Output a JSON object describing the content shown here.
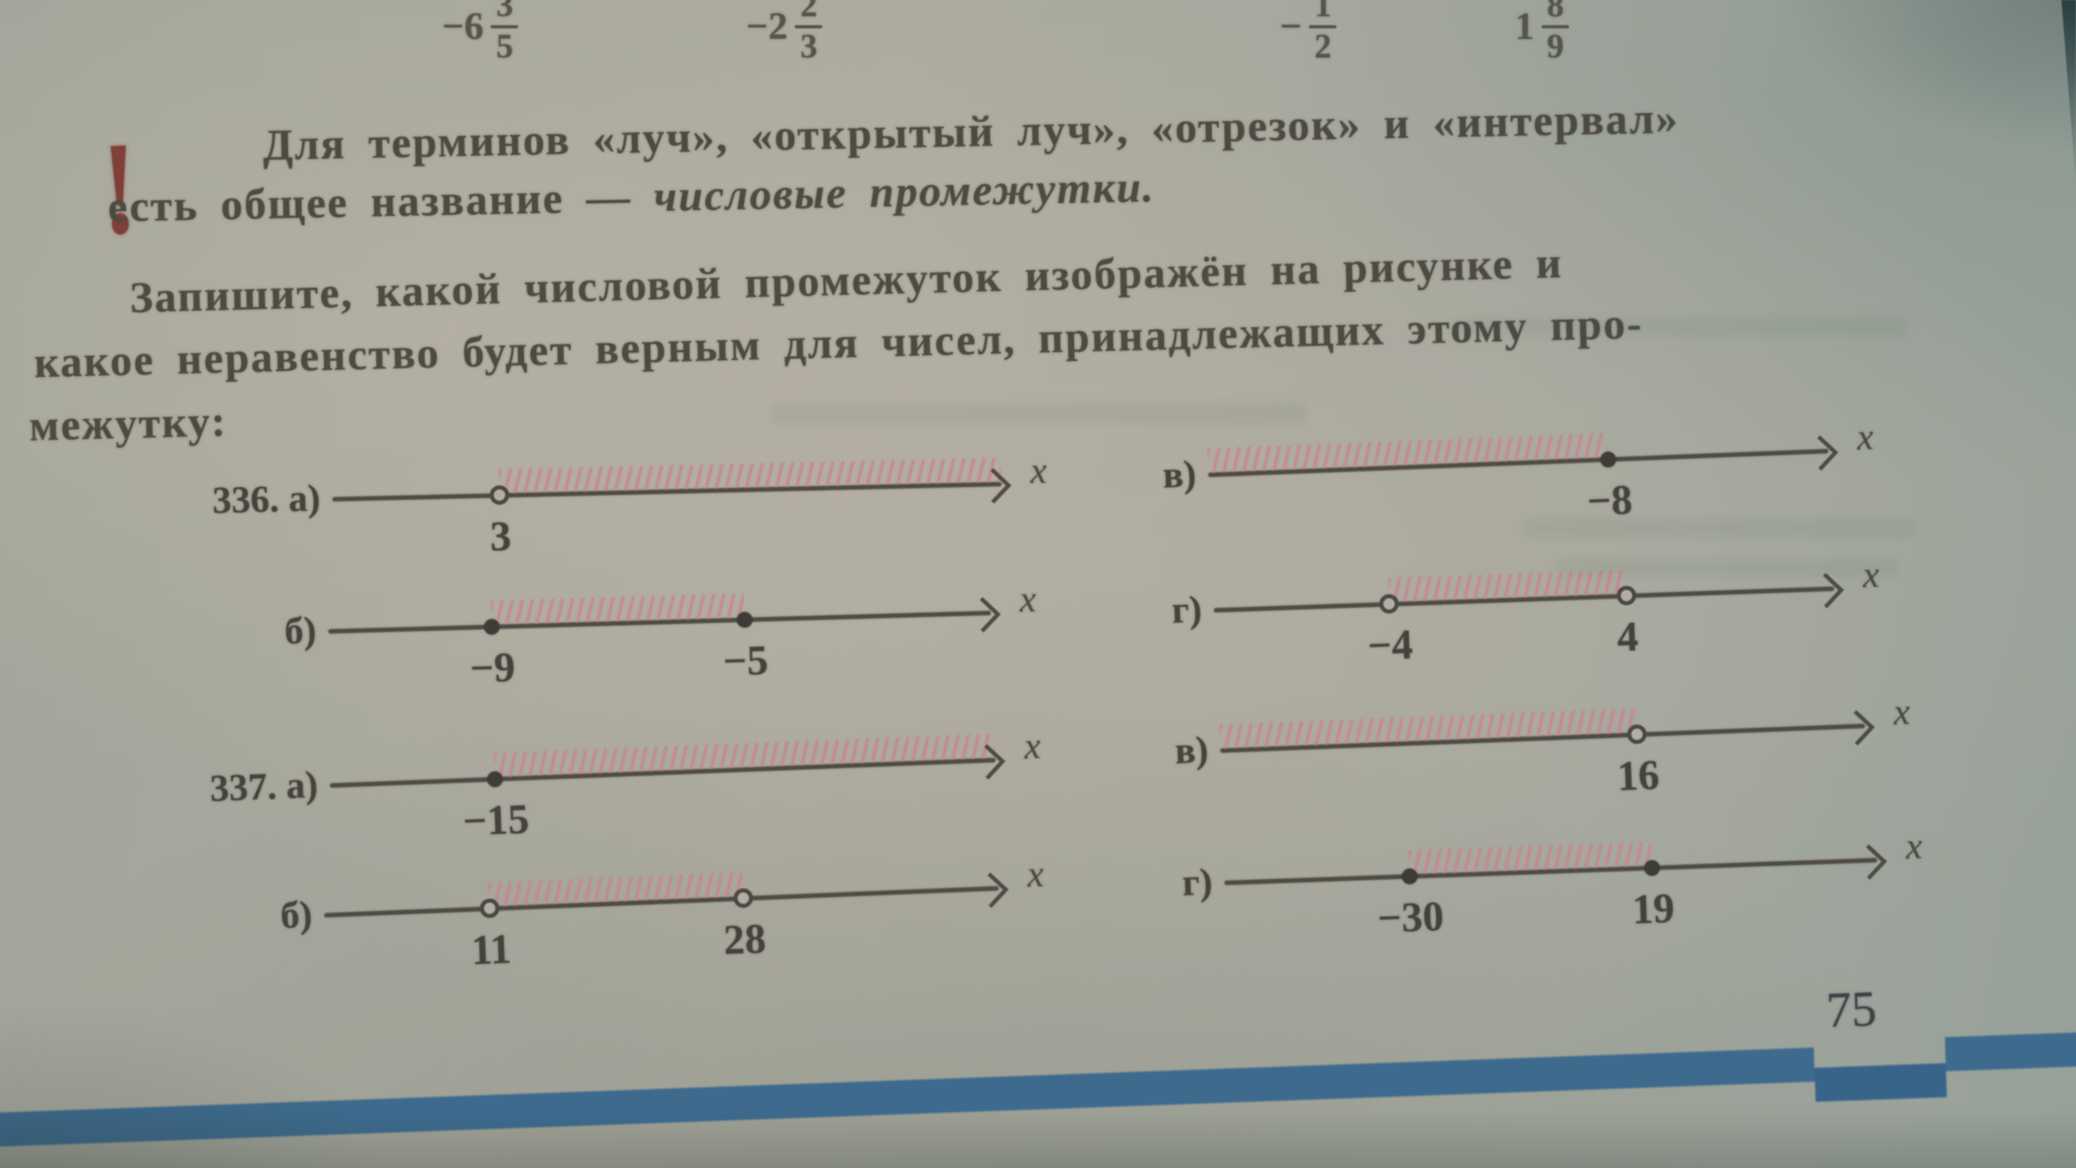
{
  "page": {
    "number": "75"
  },
  "top_row": {
    "fractions": [
      {
        "whole": "−6",
        "numerator": "3",
        "denominator": "5"
      },
      {
        "whole": "−2",
        "numerator": "2",
        "denominator": "3"
      },
      {
        "whole": "−",
        "numerator": "1",
        "denominator": "2"
      },
      {
        "whole": "1",
        "numerator": "8",
        "denominator": "9"
      }
    ]
  },
  "note": {
    "marker": "!",
    "line1": "Для терминов «луч», «открытый луч», «отрезок» и «интервал»",
    "line2_plain": "есть общее название — ",
    "line2_italic": "числовые промежутки."
  },
  "task": {
    "line1": "Запишите, какой числовой промежуток изображён на рисунке и",
    "line2": "какое неравенство будет верным для чисел, принадлежащих этому про-",
    "line3": "межутку:"
  },
  "diagrams": [
    {
      "id": "d336a",
      "label": "336. а)",
      "axis_label": "x",
      "points": [
        {
          "value": "3",
          "type": "open",
          "pos": 0.25
        }
      ],
      "hatch": {
        "from": 0.25,
        "to": 1.0
      }
    },
    {
      "id": "d336v",
      "label": "в)",
      "axis_label": "x",
      "points": [
        {
          "value": "−8",
          "type": "closed",
          "pos": 0.645
        }
      ],
      "hatch": {
        "from": 0.0,
        "to": 0.645
      }
    },
    {
      "id": "d336b",
      "label": "б)",
      "axis_label": "x",
      "points": [
        {
          "value": "−9",
          "type": "closed",
          "pos": 0.246
        },
        {
          "value": "−5",
          "type": "closed",
          "pos": 0.628
        }
      ],
      "hatch": {
        "from": 0.246,
        "to": 0.628
      }
    },
    {
      "id": "d336g",
      "label": "г)",
      "axis_label": "x",
      "points": [
        {
          "value": "−4",
          "type": "open",
          "pos": 0.282
        },
        {
          "value": "4",
          "type": "open",
          "pos": 0.665
        }
      ],
      "hatch": {
        "from": 0.282,
        "to": 0.665
      }
    },
    {
      "id": "d337a",
      "label": "337. а)",
      "axis_label": "x",
      "points": [
        {
          "value": "−15",
          "type": "closed",
          "pos": 0.247
        }
      ],
      "hatch": {
        "from": 0.247,
        "to": 1.0
      }
    },
    {
      "id": "d337v",
      "label": "в)",
      "axis_label": "x",
      "points": [
        {
          "value": "16",
          "type": "open",
          "pos": 0.646
        }
      ],
      "hatch": {
        "from": 0.0,
        "to": 0.646
      }
    },
    {
      "id": "d337b",
      "label": "б)",
      "axis_label": "x",
      "points": [
        {
          "value": "11",
          "type": "open",
          "pos": 0.245
        },
        {
          "value": "28",
          "type": "open",
          "pos": 0.621
        }
      ],
      "hatch": {
        "from": 0.245,
        "to": 0.621
      }
    },
    {
      "id": "d337g",
      "label": "г)",
      "axis_label": "x",
      "points": [
        {
          "value": "−30",
          "type": "closed",
          "pos": 0.283
        },
        {
          "value": "19",
          "type": "closed",
          "pos": 0.655
        }
      ],
      "hatch": {
        "from": 0.283,
        "to": 0.655
      }
    }
  ],
  "colors": {
    "ink": "#4c4a42",
    "hatch_pink": "#c9848f",
    "accent_red": "#7e4038",
    "bar_blue": "#3d6a8d",
    "paper": "#a8a79d"
  }
}
